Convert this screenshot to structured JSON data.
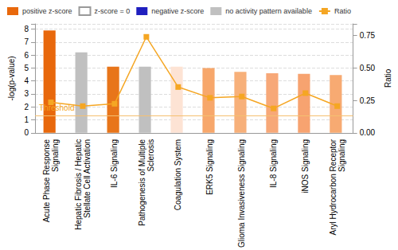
{
  "chart_data": {
    "type": "bar",
    "categories": [
      "Acute Phase Response\nSignaling",
      "Hepatic Fibrosis / Hepatic\nStellate Cell Activation",
      "IL-6 Signaling",
      "Pathogenesis of Multiple\nSclerosis",
      "Coagulation System",
      "ERK5 Signaling",
      "Glioma Invasiveness Signaling",
      "IL-8 Signaling",
      "iNOS Signaling",
      "Aryl Hydrocarbon Receptor\nSignaling"
    ],
    "values": [
      7.9,
      6.2,
      5.1,
      5.1,
      5.1,
      5.0,
      4.7,
      4.6,
      4.55,
      4.45
    ],
    "colors": [
      "#e8680c",
      "#c0c0c0",
      "#e8751a",
      "#c0c0c0",
      "#fde3d4",
      "#f7a76b",
      "#f7b07a",
      "#f7a878",
      "#f7a370",
      "#f7aa72"
    ],
    "series": [
      {
        "name": "Ratio",
        "type": "line",
        "axis": "y2",
        "color": "#f5a623",
        "marker": "square",
        "values": [
          0.235,
          0.206,
          0.224,
          0.74,
          0.353,
          0.27,
          0.28,
          0.188,
          0.306,
          0.206
        ]
      }
    ],
    "legend_entries": [
      {
        "name": "positive z-score",
        "color": "#e8680c"
      },
      {
        "name": "z-score = 0",
        "color": "#ffffff"
      },
      {
        "name": "negative z-score",
        "color": "#1f1fbf"
      },
      {
        "name": "no activity pattern available",
        "color": "#c0c0c0"
      }
    ],
    "threshold": {
      "value": 1.3,
      "label": "Threshold"
    },
    "y_label": "-log(p-value)",
    "y2_label": "Ratio",
    "ylim": [
      0,
      8.4
    ],
    "yticks": [
      0,
      1,
      2,
      3,
      4,
      5,
      6,
      7,
      8
    ],
    "y2lim": [
      0,
      0.84
    ],
    "y2ticks": [
      {
        "value": 0,
        "label": "0.00"
      },
      {
        "value": 0.25,
        "label": "0.25"
      },
      {
        "value": 0.5,
        "label": "0.50"
      },
      {
        "value": 0.75,
        "label": "0.75"
      }
    ],
    "grid": true,
    "legend": "top"
  }
}
